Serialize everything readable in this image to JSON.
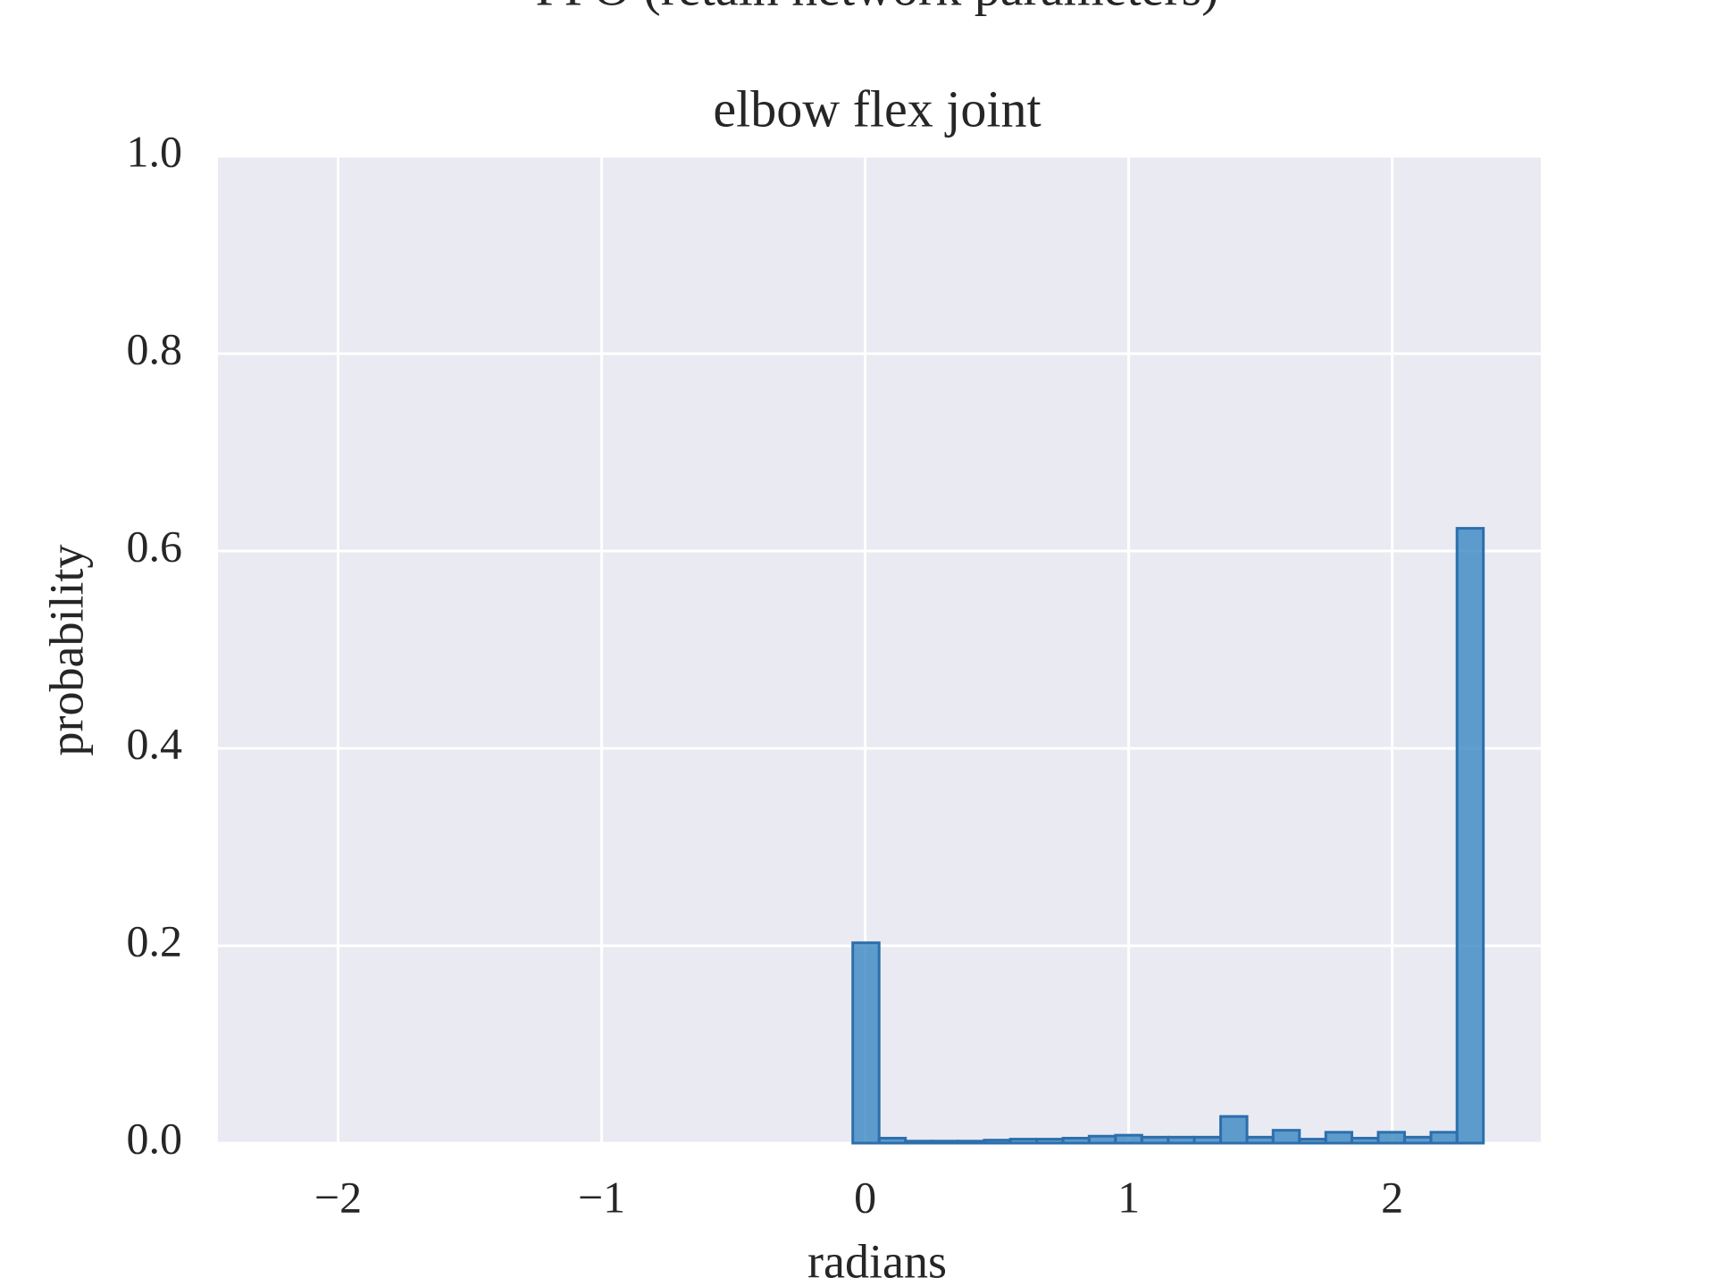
{
  "chart_data": {
    "type": "histogram",
    "title": "PPO (retain network parameters)",
    "subtitle": "elbow flex joint",
    "x_label": "radians",
    "y_label": "probability",
    "bins": [
      -2.24,
      -2.14,
      -2.041,
      -1.941,
      -1.841,
      -1.742,
      -1.642,
      -1.542,
      -1.442,
      -1.343,
      -1.243,
      -1.143,
      -1.044,
      -0.944,
      -0.844,
      -0.745,
      -0.645,
      -0.545,
      -0.445,
      -0.346,
      -0.246,
      -0.146,
      -0.047,
      0.053,
      0.153,
      0.252,
      0.352,
      0.452,
      0.551,
      0.651,
      0.751,
      0.85,
      0.95,
      1.05,
      1.15,
      1.249,
      1.349,
      1.449,
      1.548,
      1.648,
      1.748,
      1.847,
      1.947,
      2.047,
      2.147,
      2.246,
      2.346
    ],
    "values": [
      0,
      0,
      0,
      0,
      0,
      0,
      0,
      0,
      0,
      0,
      0,
      0,
      0,
      0,
      0,
      0,
      0,
      0,
      0,
      0,
      0,
      0,
      0.203,
      0.005,
      0.002,
      0.002,
      0.002,
      0.003,
      0.004,
      0.004,
      0.005,
      0.007,
      0.008,
      0.006,
      0.006,
      0.006,
      0.027,
      0.006,
      0.013,
      0.004,
      0.011,
      0.005,
      0.011,
      0.006,
      0.011,
      0.623
    ],
    "color": "#3a87c2",
    "edge_color": "#2c6fac",
    "xlim": [
      -2.456,
      2.564
    ],
    "ylim": [
      0,
      1
    ],
    "xticks": [
      {
        "value": -2,
        "label": "−2"
      },
      {
        "value": -1,
        "label": "−1"
      },
      0,
      1,
      2
    ],
    "yticks": [
      {
        "value": 0,
        "label": "0.0"
      },
      0.2,
      0.4,
      0.6,
      0.8,
      {
        "value": 1,
        "label": "1.0"
      }
    ],
    "grid": true
  }
}
